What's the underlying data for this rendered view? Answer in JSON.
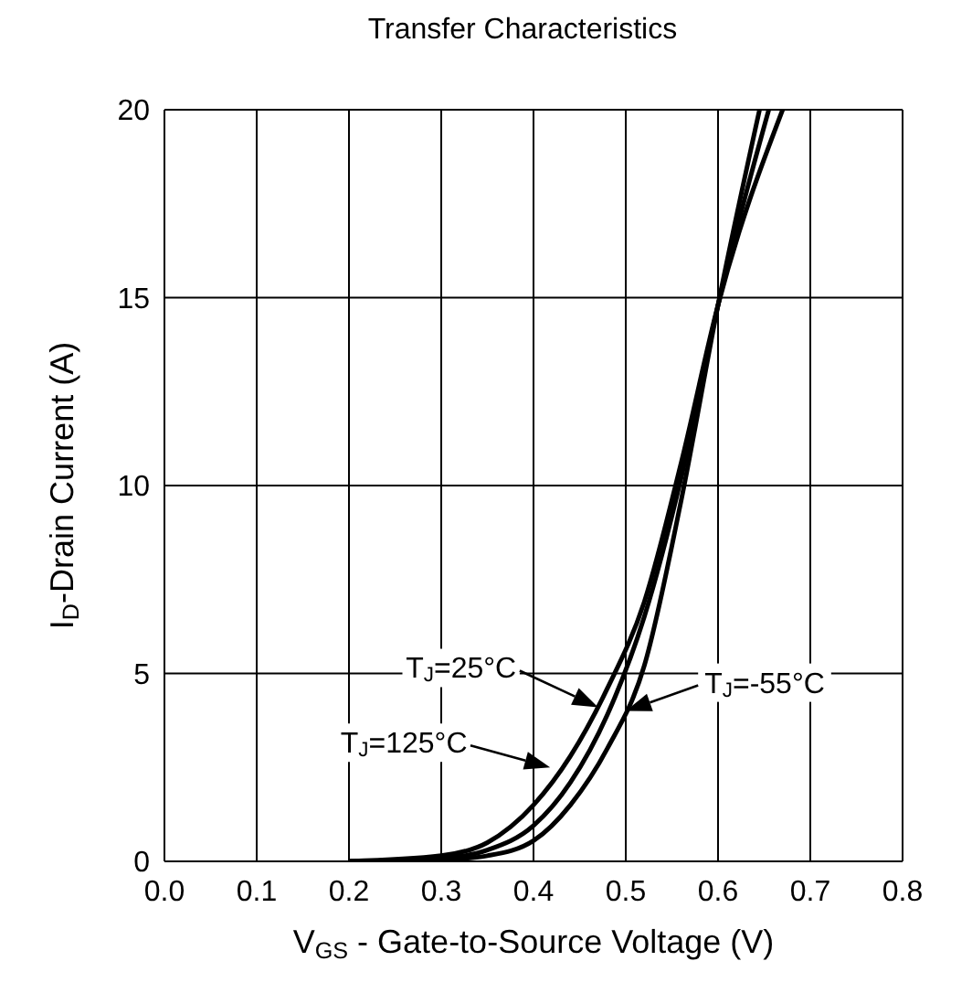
{
  "chart_data": {
    "type": "line",
    "title": "Transfer Characteristics",
    "xlabel": "V$_{GS}$ - Gate-to-Source Voltage (V)",
    "ylabel": "I$_{D}$-Drain Current (A)",
    "xlim": [
      0,
      0.8
    ],
    "xticks": [
      {
        "value": 0,
        "label": "0.0"
      },
      {
        "value": 0.1,
        "label": "0.1"
      },
      {
        "value": 0.2,
        "label": "0.2"
      },
      {
        "value": 0.3,
        "label": "0.3"
      },
      {
        "value": 0.4,
        "label": "0.4"
      },
      {
        "value": 0.5,
        "label": "0.5"
      },
      {
        "value": 0.6,
        "label": "0.6"
      },
      {
        "value": 0.7,
        "label": "0.7"
      },
      {
        "value": 0.8,
        "label": "0.8"
      }
    ],
    "ylim": [
      0,
      20
    ],
    "yticks": [
      0,
      5,
      10,
      15,
      20
    ],
    "grid": true,
    "marker": "none",
    "line_style": "solid",
    "series": [
      {
        "color": "#000000",
        "x": [
          0.2,
          0.3,
          0.35,
          0.4,
          0.44,
          0.48,
          0.52,
          0.56,
          0.6,
          0.67
        ],
        "values": [
          0,
          0.15,
          0.5,
          1.5,
          2.8,
          4.6,
          6.9,
          10.6,
          14.8,
          20
        ]
      },
      {
        "color": "#000000",
        "x": [
          0.2,
          0.3,
          0.35,
          0.4,
          0.44,
          0.48,
          0.52,
          0.56,
          0.6,
          0.655
        ],
        "values": [
          0,
          0.08,
          0.3,
          0.95,
          2.1,
          3.9,
          6.5,
          10.2,
          14.8,
          20
        ]
      },
      {
        "color": "#000000",
        "x": [
          0.2,
          0.3,
          0.35,
          0.4,
          0.44,
          0.48,
          0.52,
          0.56,
          0.6,
          0.645
        ],
        "values": [
          0,
          0.04,
          0.15,
          0.55,
          1.5,
          3.0,
          5.2,
          9.6,
          14.8,
          20
        ]
      }
    ],
    "annotations": [
      {
        "text": "T$_{J}$=25°C",
        "x": 0.47,
        "y": 4.1
      },
      {
        "text": "T$_{J}$=125°C",
        "x": 0.418,
        "y": 2.5
      },
      {
        "text": "T$_{J}$=-55°C",
        "x": 0.5,
        "y": 4
      }
    ]
  }
}
